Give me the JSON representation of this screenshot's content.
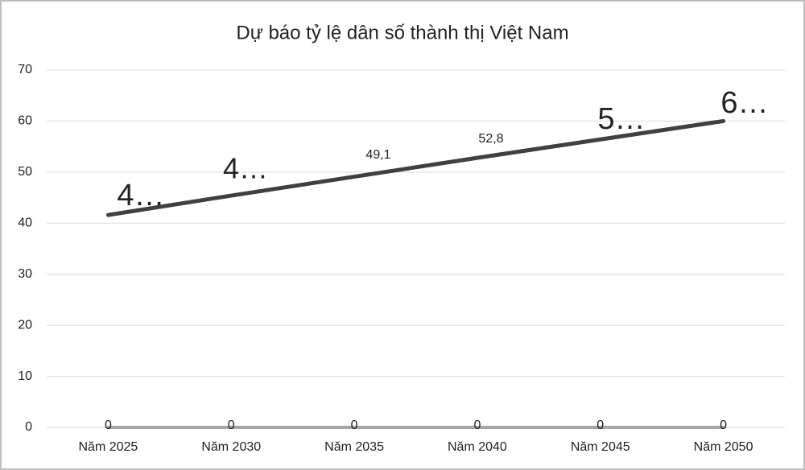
{
  "chart_data": {
    "type": "line",
    "title": "Dự báo tỷ lệ dân số thành thị Việt Nam",
    "categories": [
      "Năm 2025",
      "Năm 2030",
      "Năm 2035",
      "Năm 2040",
      "Năm 2045",
      "Năm 2050"
    ],
    "series": [
      {
        "color": "#404040",
        "values": [
          41.6,
          45.4,
          49.1,
          52.8,
          56.4,
          60
        ],
        "value_labels": [
          "4…",
          "4…",
          "49,1",
          "52,8",
          "5…",
          "6…"
        ]
      },
      {
        "color": "#a6a6a6",
        "values": [
          0,
          0,
          0,
          0,
          0,
          0
        ]
      }
    ],
    "ylim": [
      0,
      70
    ],
    "yticks": [
      0,
      10,
      20,
      30,
      40,
      50,
      60,
      70
    ],
    "grid": true
  }
}
